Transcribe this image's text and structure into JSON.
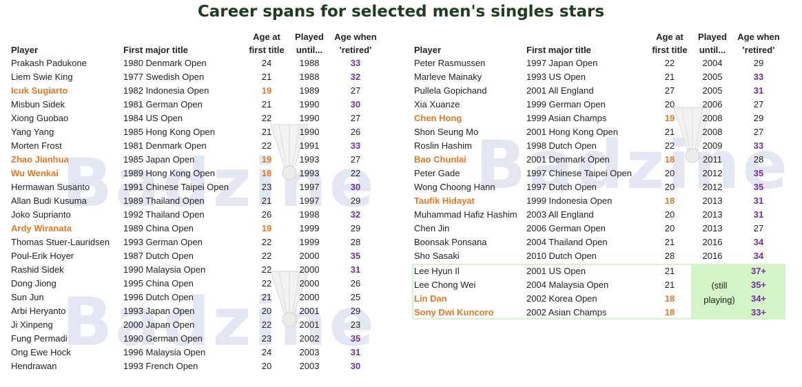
{
  "title": "Career spans for selected men's singles stars",
  "watermark": "Badzine",
  "headers": {
    "player": "Player",
    "first_title": "First major title",
    "age_first": [
      "Age at",
      "first title"
    ],
    "played": [
      "Played",
      "until..."
    ],
    "age_retired": [
      "Age when",
      "'retired'"
    ]
  },
  "left_rows": [
    {
      "player": "Prakash Padukone",
      "title": "1980 Denmark Open",
      "age": "24",
      "until": "1988",
      "ret": "33"
    },
    {
      "player": "Liem Swie King",
      "title": "1977 Swedish Open",
      "age": "21",
      "until": "1988",
      "ret": "32"
    },
    {
      "player": "Icuk Sugiarto",
      "title": "1982 Indonesia Open",
      "age": "19",
      "until": "1989",
      "ret": "27"
    },
    {
      "player": "Misbun Sidek",
      "title": "1981  German Open",
      "age": "21",
      "until": "1990",
      "ret": "30"
    },
    {
      "player": "Xiong Guobao",
      "title": "1984  US Open",
      "age": "22",
      "until": "1990",
      "ret": "27"
    },
    {
      "player": "Yang Yang",
      "title": "1985 Hong Kong Open",
      "age": "21",
      "until": "1990",
      "ret": "26"
    },
    {
      "player": "Morten Frost",
      "title": "1981 Denmark Open",
      "age": "22",
      "until": "1991",
      "ret": "33"
    },
    {
      "player": "Zhao Jianhua",
      "title": "1985  Japan Open",
      "age": "19",
      "until": "1993",
      "ret": "27"
    },
    {
      "player": "Wu Wenkai",
      "title": "1989 Hong Kong Open",
      "age": "18",
      "until": "1993",
      "ret": "22"
    },
    {
      "player": "Hermawan Susanto",
      "title": "1991  Chinese Taipei Open",
      "age": "23",
      "until": "1997",
      "ret": "30"
    },
    {
      "player": "Allan Budi Kusuma",
      "title": "1989  Thailand Open",
      "age": "21",
      "until": "1997",
      "ret": "29"
    },
    {
      "player": "Joko Suprianto",
      "title": "1992  Thailand Open",
      "age": "26",
      "until": "1998",
      "ret": "32"
    },
    {
      "player": "Ardy Wiranata",
      "title": "1989  China Open",
      "age": "19",
      "until": "1999",
      "ret": "29"
    },
    {
      "player": "Thomas Stuer-Lauridsen",
      "title": "1993  German Open",
      "age": "22",
      "until": "1999",
      "ret": "28"
    },
    {
      "player": "Poul-Erik Hoyer",
      "title": "1987  Dutch Open",
      "age": "22",
      "until": "2000",
      "ret": "35"
    },
    {
      "player": "Rashid Sidek",
      "title": "1990 Malaysia Open",
      "age": "22",
      "until": "2000",
      "ret": "31"
    },
    {
      "player": "Dong Jiong",
      "title": "1995 China Open",
      "age": "22",
      "until": "2000",
      "ret": "26"
    },
    {
      "player": "Sun Jun",
      "title": "1996 Dutch Open",
      "age": "21",
      "until": "2000",
      "ret": "25"
    },
    {
      "player": "Arbi Heryanto",
      "title": "1993  Japan Open",
      "age": "20",
      "until": "2001",
      "ret": "29"
    },
    {
      "player": "Ji Xinpeng",
      "title": "2000  Japan Open",
      "age": "22",
      "until": "2001",
      "ret": "23"
    },
    {
      "player": "Fung Permadi",
      "title": "1990  German Open",
      "age": "23",
      "until": "2002",
      "ret": "35"
    },
    {
      "player": "Ong Ewe Hock",
      "title": "1996  Malaysia Open",
      "age": "24",
      "until": "2003",
      "ret": "31"
    },
    {
      "player": "Hendrawan",
      "title": "1993 French Open",
      "age": "20",
      "until": "2003",
      "ret": "30"
    }
  ],
  "right_rows": [
    {
      "player": "Peter Rasmussen",
      "title": "1997  Japan Open",
      "age": "22",
      "until": "2004",
      "ret": "29"
    },
    {
      "player": "Marleve Mainaky",
      "title": "1993  US Open",
      "age": "21",
      "until": "2005",
      "ret": "33"
    },
    {
      "player": "Pullela Gopichand",
      "title": "2001 All England",
      "age": "27",
      "until": "2005",
      "ret": "31"
    },
    {
      "player": "Xia Xuanze",
      "title": "1999  German Open",
      "age": "20",
      "until": "2006",
      "ret": "27"
    },
    {
      "player": "Chen Hong",
      "title": "1999  Asian Champs",
      "age": "19",
      "until": "2008",
      "ret": "29"
    },
    {
      "player": "Shon Seung Mo",
      "title": "2001 Hong Kong Open",
      "age": "21",
      "until": "2008",
      "ret": "27"
    },
    {
      "player": "Roslin Hashim",
      "title": "1998  Dutch Open",
      "age": "22",
      "until": "2009",
      "ret": "33"
    },
    {
      "player": "Bao Chunlai",
      "title": "2001 Denmark Open",
      "age": "18",
      "until": "2011",
      "ret": "28"
    },
    {
      "player": "Peter Gade",
      "title": "1997  Chinese Taipei Open",
      "age": "20",
      "until": "2012",
      "ret": "35"
    },
    {
      "player": "Wong Choong Hann",
      "title": "1997 Dutch Open",
      "age": "20",
      "until": "2012",
      "ret": "35"
    },
    {
      "player": "Taufik Hidayat",
      "title": "1999 Indonesia Open",
      "age": "18",
      "until": "2013",
      "ret": "31"
    },
    {
      "player": "Muhammad Hafiz Hashim",
      "title": "2003 All England",
      "age": "20",
      "until": "2013",
      "ret": "31"
    },
    {
      "player": "Chen Jin",
      "title": "2006 German Open",
      "age": "20",
      "until": "2013",
      "ret": "27"
    },
    {
      "player": "Boonsak Ponsana",
      "title": "2004  Thailand Open",
      "age": "21",
      "until": "2016",
      "ret": "34"
    },
    {
      "player": "Sho Sasaki",
      "title": "2010 Dutch Open",
      "age": "28",
      "until": "2016",
      "ret": "34"
    }
  ],
  "still_rows": [
    {
      "player": "Lee Hyun Il",
      "title": "2001 US Open",
      "age": "21",
      "ret": "37+"
    },
    {
      "player": "Lee Chong Wei",
      "title": "2004  Malaysia Open",
      "age": "21",
      "ret": "35+"
    },
    {
      "player": "Lin Dan",
      "title": "2002 Korea Open",
      "age": "18",
      "ret": "34+"
    },
    {
      "player": "Sony Dwi Kuncoro",
      "title": "2002 Asian Champs",
      "age": "18",
      "ret": "33+"
    }
  ],
  "still_playing": [
    "(still",
    "playing)"
  ],
  "colors": {
    "highlight_young": "#e87722",
    "highlight_old": "#7030a0",
    "still_playing_bg": "#d4f4c8",
    "title": "#1e3d1e"
  }
}
